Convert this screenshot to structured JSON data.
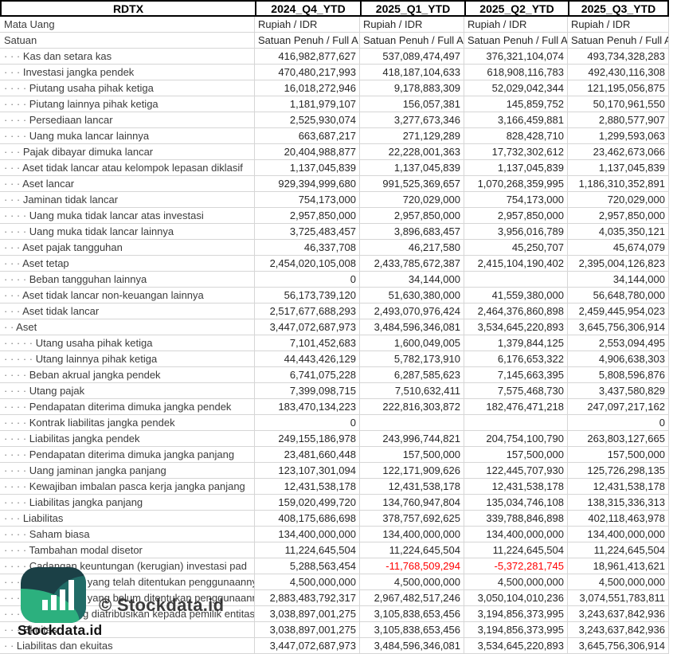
{
  "colors": {
    "negative": "#ff0000",
    "grid_line": "#d6d6d6",
    "header_border": "#000000",
    "logo_dark": "#1b4046",
    "logo_teal": "#216b66",
    "logo_green": "#2cb07e",
    "logo_bars": "#ffffff"
  },
  "watermark": {
    "copyright_text": "© Stockdata.id",
    "brand_text": "Stockdata.id",
    "logo_icon": "bar-chart-icon"
  },
  "table": {
    "ticker": "RDTX",
    "periods": [
      "2024_Q4_YTD",
      "2025_Q1_YTD",
      "2025_Q2_YTD",
      "2025_Q3_YTD"
    ],
    "meta_rows": [
      {
        "label": "Mata Uang",
        "values": [
          "Rupiah / IDR",
          "Rupiah / IDR",
          "Rupiah / IDR",
          "Rupiah / IDR"
        ]
      },
      {
        "label": "Satuan",
        "values": [
          "Satuan Penuh / Full A",
          "Satuan Penuh / Full A",
          "Satuan Penuh / Full A",
          "Satuan Penuh / Full A"
        ]
      }
    ],
    "rows": [
      {
        "dots": 3,
        "label": "Kas dan setara kas",
        "values": [
          "416,982,877,627",
          "537,089,474,497",
          "376,321,104,074",
          "493,734,328,283"
        ]
      },
      {
        "dots": 3,
        "label": "Investasi jangka pendek",
        "values": [
          "470,480,217,993",
          "418,187,104,633",
          "618,908,116,783",
          "492,430,116,308"
        ]
      },
      {
        "dots": 4,
        "label": "Piutang usaha pihak ketiga",
        "values": [
          "16,018,272,946",
          "9,178,883,309",
          "52,029,042,344",
          "121,195,056,875"
        ]
      },
      {
        "dots": 4,
        "label": "Piutang lainnya pihak ketiga",
        "values": [
          "1,181,979,107",
          "156,057,381",
          "145,859,752",
          "50,170,961,550"
        ]
      },
      {
        "dots": 4,
        "label": "Persediaan lancar",
        "values": [
          "2,525,930,074",
          "3,277,673,346",
          "3,166,459,881",
          "2,880,577,907"
        ]
      },
      {
        "dots": 4,
        "label": "Uang muka lancar lainnya",
        "values": [
          "663,687,217",
          "271,129,289",
          "828,428,710",
          "1,299,593,063"
        ]
      },
      {
        "dots": 3,
        "label": "Pajak dibayar dimuka lancar",
        "values": [
          "20,404,988,877",
          "22,228,001,363",
          "17,732,302,612",
          "23,462,673,066"
        ]
      },
      {
        "dots": 3,
        "label": "Aset tidak lancar atau kelompok lepasan diklasif",
        "values": [
          "1,137,045,839",
          "1,137,045,839",
          "1,137,045,839",
          "1,137,045,839"
        ]
      },
      {
        "dots": 3,
        "label": "Aset lancar",
        "values": [
          "929,394,999,680",
          "991,525,369,657",
          "1,070,268,359,995",
          "1,186,310,352,891"
        ]
      },
      {
        "dots": 3,
        "label": "Jaminan tidak lancar",
        "values": [
          "754,173,000",
          "720,029,000",
          "754,173,000",
          "720,029,000"
        ]
      },
      {
        "dots": 4,
        "label": "Uang muka tidak lancar atas investasi",
        "values": [
          "2,957,850,000",
          "2,957,850,000",
          "2,957,850,000",
          "2,957,850,000"
        ]
      },
      {
        "dots": 4,
        "label": "Uang muka tidak lancar lainnya",
        "values": [
          "3,725,483,457",
          "3,896,683,457",
          "3,956,016,789",
          "4,035,350,121"
        ]
      },
      {
        "dots": 3,
        "label": "Aset pajak tangguhan",
        "values": [
          "46,337,708",
          "46,217,580",
          "45,250,707",
          "45,674,079"
        ]
      },
      {
        "dots": 3,
        "label": "Aset tetap",
        "values": [
          "2,454,020,105,008",
          "2,433,785,672,387",
          "2,415,104,190,402",
          "2,395,004,126,823"
        ]
      },
      {
        "dots": 4,
        "label": "Beban tangguhan lainnya",
        "values": [
          "0",
          "34,144,000",
          "",
          "34,144,000"
        ]
      },
      {
        "dots": 3,
        "label": "Aset tidak lancar non-keuangan lainnya",
        "values": [
          "56,173,739,120",
          "51,630,380,000",
          "41,559,380,000",
          "56,648,780,000"
        ]
      },
      {
        "dots": 3,
        "label": "Aset tidak lancar",
        "values": [
          "2,517,677,688,293",
          "2,493,070,976,424",
          "2,464,376,860,898",
          "2,459,445,954,023"
        ]
      },
      {
        "dots": 2,
        "label": "Aset",
        "values": [
          "3,447,072,687,973",
          "3,484,596,346,081",
          "3,534,645,220,893",
          "3,645,756,306,914"
        ]
      },
      {
        "dots": 5,
        "label": "Utang usaha pihak ketiga",
        "values": [
          "7,101,452,683",
          "1,600,049,005",
          "1,379,844,125",
          "2,553,094,495"
        ]
      },
      {
        "dots": 5,
        "label": "Utang lainnya pihak ketiga",
        "values": [
          "44,443,426,129",
          "5,782,173,910",
          "6,176,653,322",
          "4,906,638,303"
        ]
      },
      {
        "dots": 4,
        "label": "Beban akrual jangka pendek",
        "values": [
          "6,741,075,228",
          "6,287,585,623",
          "7,145,663,395",
          "5,808,596,876"
        ]
      },
      {
        "dots": 4,
        "label": "Utang pajak",
        "values": [
          "7,399,098,715",
          "7,510,632,411",
          "7,575,468,730",
          "3,437,580,829"
        ]
      },
      {
        "dots": 4,
        "label": "Pendapatan diterima dimuka jangka pendek",
        "values": [
          "183,470,134,223",
          "222,816,303,872",
          "182,476,471,218",
          "247,097,217,162"
        ]
      },
      {
        "dots": 4,
        "label": "Kontrak liabilitas jangka pendek",
        "values": [
          "0",
          "",
          "",
          "0"
        ]
      },
      {
        "dots": 4,
        "label": "Liabilitas jangka pendek",
        "values": [
          "249,155,186,978",
          "243,996,744,821",
          "204,754,100,790",
          "263,803,127,665"
        ]
      },
      {
        "dots": 4,
        "label": "Pendapatan diterima dimuka jangka panjang",
        "values": [
          "23,481,660,448",
          "157,500,000",
          "157,500,000",
          "157,500,000"
        ]
      },
      {
        "dots": 4,
        "label": "Uang jaminan jangka panjang",
        "values": [
          "123,107,301,094",
          "122,171,909,626",
          "122,445,707,930",
          "125,726,298,135"
        ]
      },
      {
        "dots": 4,
        "label": "Kewajiban imbalan pasca kerja jangka panjang",
        "values": [
          "12,431,538,178",
          "12,431,538,178",
          "12,431,538,178",
          "12,431,538,178"
        ]
      },
      {
        "dots": 4,
        "label": "Liabilitas jangka panjang",
        "values": [
          "159,020,499,720",
          "134,760,947,804",
          "135,034,746,108",
          "138,315,336,313"
        ]
      },
      {
        "dots": 3,
        "label": "Liabilitas",
        "values": [
          "408,175,686,698",
          "378,757,692,625",
          "339,788,846,898",
          "402,118,463,978"
        ]
      },
      {
        "dots": 4,
        "label": "Saham biasa",
        "values": [
          "134,400,000,000",
          "134,400,000,000",
          "134,400,000,000",
          "134,400,000,000"
        ]
      },
      {
        "dots": 4,
        "label": "Tambahan modal disetor",
        "values": [
          "11,224,645,504",
          "11,224,645,504",
          "11,224,645,504",
          "11,224,645,504"
        ]
      },
      {
        "dots": 4,
        "label": "Cadangan keuntungan (kerugian) investasi pad",
        "values": [
          "5,288,563,454",
          "-11,768,509,294",
          "-5,372,281,745",
          "18,961,413,621"
        ]
      },
      {
        "dots": 5,
        "label": "Saldo laba yang telah ditentukan penggunaannya",
        "values": [
          "4,500,000,000",
          "4,500,000,000",
          "4,500,000,000",
          "4,500,000,000"
        ]
      },
      {
        "dots": 5,
        "label": "Saldo laba yang belum ditentukan penggunaannya",
        "values": [
          "2,883,483,792,317",
          "2,967,482,517,246",
          "3,050,104,010,236",
          "3,074,551,783,811"
        ]
      },
      {
        "dots": 4,
        "label": "Ekuitas yang diatribusikan kepada pemilik entitas induk",
        "values": [
          "3,038,897,001,275",
          "3,105,838,653,456",
          "3,194,856,373,995",
          "3,243,637,842,936"
        ]
      },
      {
        "dots": 3,
        "label": "Ekuitas",
        "values": [
          "3,038,897,001,275",
          "3,105,838,653,456",
          "3,194,856,373,995",
          "3,243,637,842,936"
        ]
      },
      {
        "dots": 2,
        "label": "Liabilitas dan ekuitas",
        "values": [
          "3,447,072,687,973",
          "3,484,596,346,081",
          "3,534,645,220,893",
          "3,645,756,306,914"
        ]
      }
    ]
  }
}
